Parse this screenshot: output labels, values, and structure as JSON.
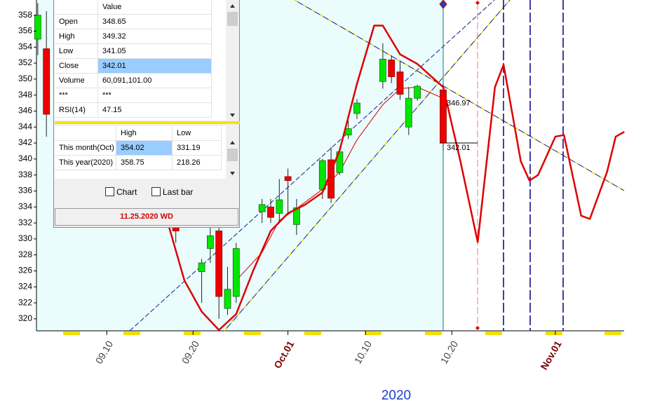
{
  "chart_data": {
    "type": "candlestick",
    "x": [
      "09.02",
      "09.03",
      "09.18",
      "09.21",
      "09.22",
      "09.23",
      "09.24",
      "09.25",
      "09.28",
      "09.29",
      "09.30",
      "10.01",
      "10.02",
      "10.05",
      "10.06",
      "10.07",
      "10.08",
      "10.09",
      "10.12",
      "10.13",
      "10.14",
      "10.15",
      "10.16",
      "10.19"
    ],
    "open": [
      355,
      353.8,
      332,
      325.9,
      328.8,
      331,
      321.3,
      322.8,
      333.4,
      334,
      333.2,
      337.8,
      331.8,
      336.2,
      339.9,
      338.3,
      343,
      345.7,
      349.7,
      352.4,
      350.9,
      344,
      347.6,
      348.65
    ],
    "high": [
      359.5,
      358.5,
      333,
      327.5,
      331.5,
      332,
      326.5,
      329.5,
      335,
      335,
      337.5,
      338.8,
      335,
      340,
      341.5,
      341.3,
      344.8,
      347.5,
      354.5,
      353,
      352.3,
      349,
      349.3,
      349.32
    ],
    "low": [
      353,
      342.8,
      329.5,
      322,
      327,
      320,
      320.5,
      322,
      332,
      332,
      332,
      333,
      330.5,
      335,
      334.5,
      338,
      342.5,
      345,
      348.8,
      349.5,
      347.4,
      343,
      347.3,
      341.05
    ],
    "close": [
      358,
      345.6,
      331,
      327,
      330.4,
      322.8,
      323.7,
      328.8,
      334.3,
      332.7,
      334.9,
      337.3,
      333.9,
      339.8,
      335.1,
      340.9,
      343.8,
      347,
      352.5,
      350.3,
      348.1,
      347.6,
      349.1,
      342.01
    ],
    "up_color": "#00e600",
    "down_color": "#ee0000",
    "forecast": {
      "color": "#dd0000",
      "x": [
        "09.17",
        "09.19",
        "09.21",
        "09.23",
        "09.25",
        "09.27",
        "09.29",
        "10.01",
        "10.03",
        "10.05",
        "10.07",
        "10.09",
        "10.11",
        "10.12",
        "10.14",
        "10.16",
        "10.19",
        "10.21",
        "10.23",
        "10.25",
        "10.26",
        "10.28",
        "10.29",
        "10.30",
        "11.01",
        "11.02",
        "11.04",
        "11.05",
        "11.07",
        "11.08",
        "11.09"
      ],
      "values": [
        332.3,
        324.8,
        320.9,
        318.6,
        320.6,
        326.1,
        331,
        333.2,
        334.3,
        335.8,
        341.1,
        349.4,
        356.7,
        356.7,
        353.1,
        351.9,
        349,
        339.7,
        329.6,
        349,
        351.8,
        339.7,
        337.3,
        338,
        342.8,
        343,
        332.9,
        332.5,
        338.4,
        342.8,
        343.4
      ]
    },
    "average": {
      "color": "#dd0000",
      "x": [
        "09.25",
        "09.28",
        "09.30",
        "10.02",
        "10.05",
        "10.07",
        "10.09",
        "10.12",
        "10.14",
        "10.16",
        "10.19"
      ],
      "values": [
        324.8,
        328.3,
        332.3,
        333.8,
        336.2,
        338.4,
        342.4,
        346.8,
        348.8,
        349,
        347.6
      ]
    },
    "annotations": [
      {
        "x": "10.19",
        "y": 346.97
      },
      {
        "x": "10.19",
        "y": 342.01
      }
    ],
    "xlabel": "2020",
    "xlim": [
      "09.01",
      "11.09"
    ],
    "xticks": [
      "09.10",
      "09.20",
      {
        "value": "10.01",
        "label": "Oct.01"
      },
      "10.10",
      "10.20",
      {
        "value": "11.01",
        "label": "Nov.01"
      }
    ],
    "ylim": [
      318.5,
      359.9
    ],
    "yticks": [
      320,
      322,
      324,
      326,
      328,
      330,
      332,
      334,
      336,
      338,
      340,
      342,
      344,
      346,
      348,
      350,
      352,
      354,
      356,
      358
    ]
  },
  "data_window": {
    "header": "Value",
    "rows": [
      [
        "Open",
        "348.65"
      ],
      [
        "High",
        "349.32"
      ],
      [
        "Low",
        "341.05"
      ],
      [
        "Close",
        "342.01"
      ],
      [
        "Volume",
        "60,091,101.00"
      ],
      [
        "***",
        "***"
      ],
      [
        "RSI(14)",
        "47.15"
      ]
    ]
  },
  "range_table": {
    "headers": [
      "High",
      "Low"
    ],
    "rows": [
      [
        "This month(Oct)",
        "354.02",
        "331.19"
      ],
      [
        "This year(2020)",
        "358.75",
        "218.26"
      ]
    ]
  },
  "checkboxes": [
    "Chart",
    "Last bar"
  ],
  "status": "11.25.2020 WD"
}
